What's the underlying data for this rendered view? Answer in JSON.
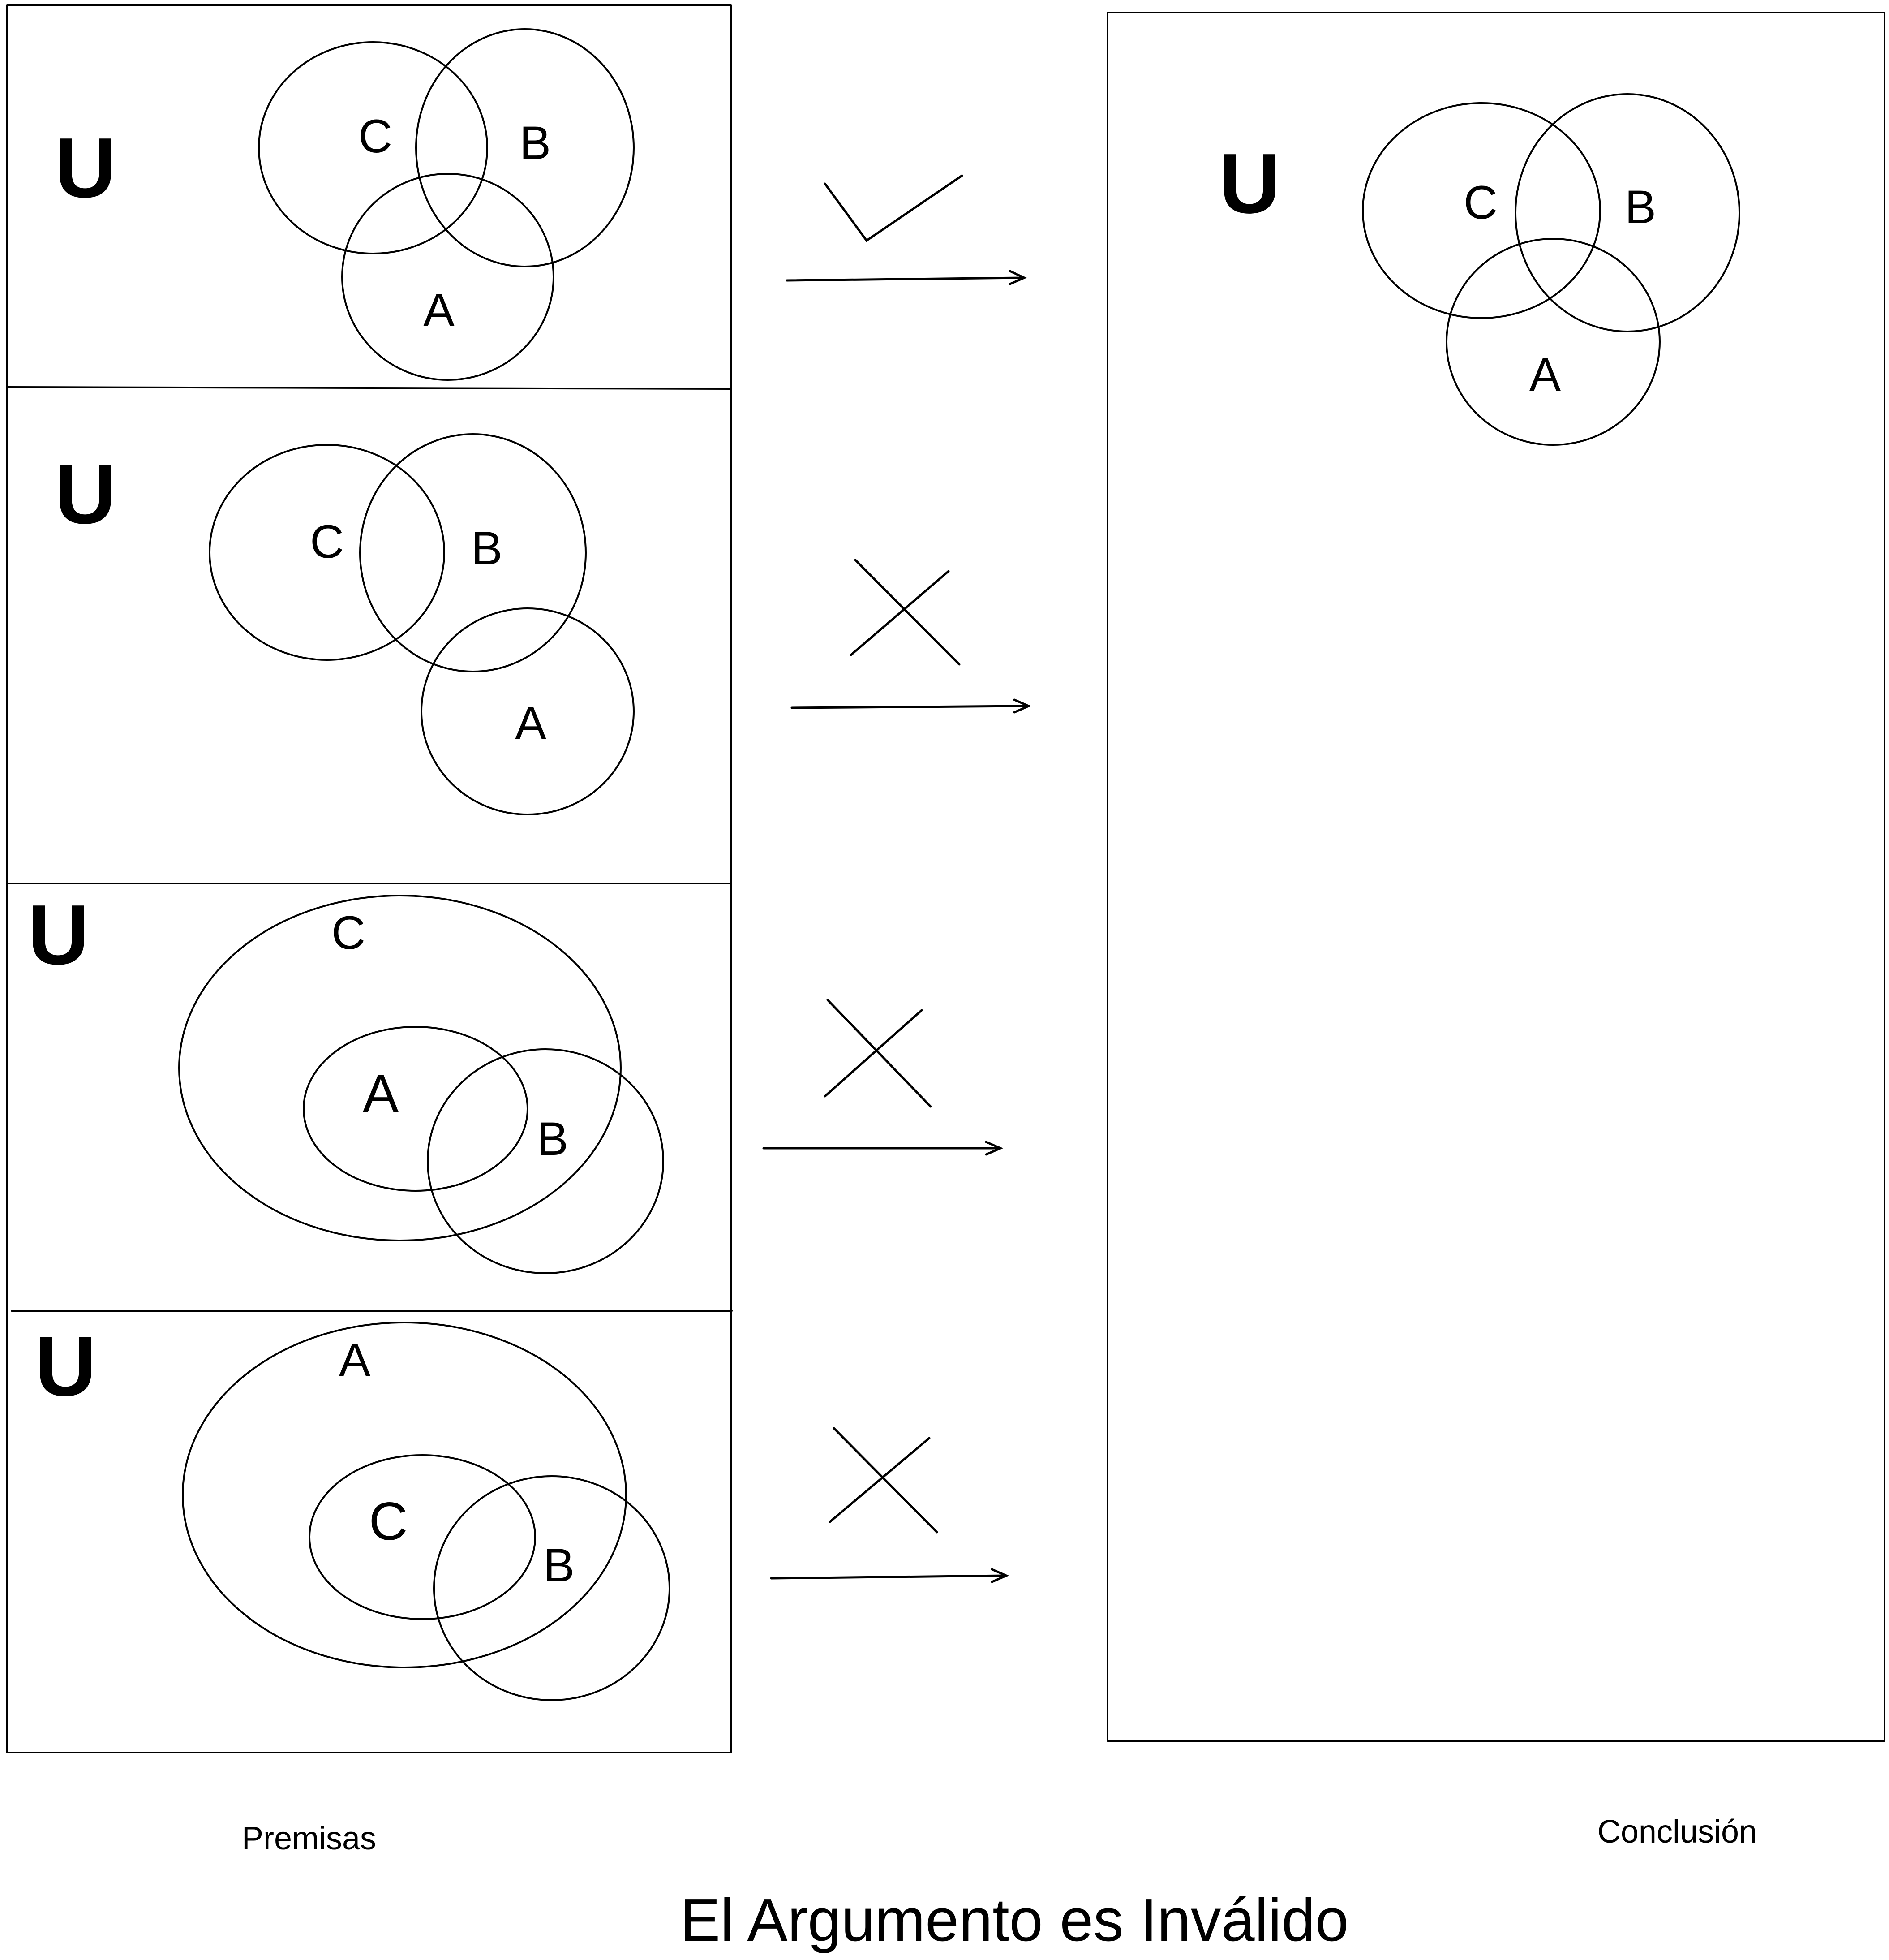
{
  "universe_label": "U",
  "premises": [
    {
      "labels": {
        "a": "C",
        "b": "B",
        "c": "A"
      },
      "mark": "check"
    },
    {
      "labels": {
        "a": "C",
        "b": "B",
        "c": "A"
      },
      "mark": "cross"
    },
    {
      "labels": {
        "a": "C",
        "b": "A",
        "c": "B"
      },
      "mark": "cross"
    },
    {
      "labels": {
        "a": "A",
        "b": "C",
        "c": "B"
      },
      "mark": "cross"
    }
  ],
  "conclusion": {
    "labels": {
      "a": "C",
      "b": "B",
      "c": "A"
    }
  },
  "captions": {
    "premises": "Premisas",
    "conclusion": "Conclusión"
  },
  "verdict": "El Argumento es Inválido"
}
